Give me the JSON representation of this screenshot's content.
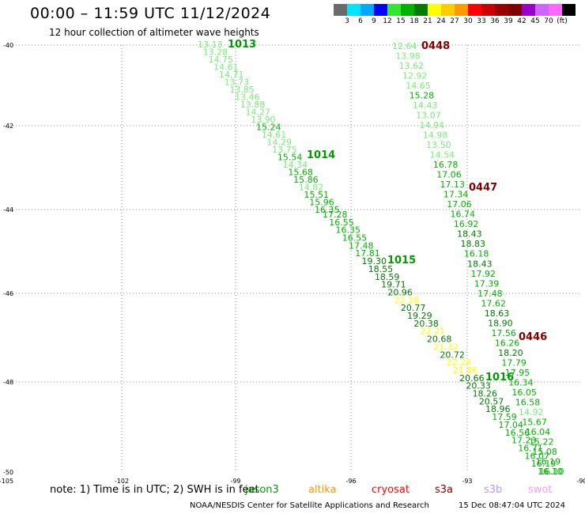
{
  "title": "00:00 – 11:59 UTC 11/12/2024",
  "subtitle": "12 hour collection of altimeter wave heights",
  "colorbar": {
    "colors": [
      "#6b6b6b",
      "#00e5ff",
      "#00a8ff",
      "#0000ff",
      "#33e633",
      "#00b300",
      "#007a00",
      "#ffff00",
      "#ffcc00",
      "#ff9900",
      "#ff0000",
      "#cc0000",
      "#990000",
      "#800000",
      "#9900cc",
      "#cc66ff",
      "#ff66ff",
      "#000000"
    ],
    "ticks": [
      "3",
      "6",
      "9",
      "12",
      "15",
      "18",
      "21",
      "24",
      "27",
      "30",
      "33",
      "36",
      "39",
      "42",
      "45",
      "70",
      "(ft)"
    ]
  },
  "axes": {
    "lat_labels": [
      "-40",
      "-42",
      "-44",
      "-46",
      "-48",
      "-50"
    ],
    "lon_labels": [
      "-105",
      "-102",
      "-99",
      "-96",
      "-93",
      "-90"
    ]
  },
  "passes": [
    {
      "id": "pass-a",
      "label": "1013",
      "label_color": "#009900",
      "values": [
        "13.13",
        "13.28",
        "14.75",
        "14.61",
        "14.71",
        "13.73",
        "13.85",
        "13.46",
        "13.88",
        "14.27",
        "13.90",
        "15.24",
        "14.61",
        "14.29",
        "13.75",
        "15.54",
        "14.34",
        "15.68",
        "15.86",
        "14.82",
        "15.51",
        "15.96",
        "16.35"
      ]
    },
    {
      "id": "pass-b",
      "label": "1014",
      "label_color": "#009900"
    },
    {
      "id": "pass-c",
      "label": "1015",
      "label_color": "#009900",
      "values": [
        "17.28",
        "16.55",
        "16.35",
        "16.55",
        "17.48",
        "17.81",
        "19.30",
        "18.55",
        "18.59",
        "19.71",
        "20.96",
        "22.28",
        "20.77",
        "19.29",
        "20.38",
        "22.21",
        "20.68",
        "21.32",
        "20.72",
        "22.24",
        "21.86",
        "20.66",
        "20.33",
        "18.26",
        "20.57",
        "18.96",
        "17.59",
        "17.04",
        "16.56",
        "17.23",
        "16.71",
        "16.07",
        "16.19",
        "16.10"
      ]
    },
    {
      "id": "pass-d",
      "label": "1016",
      "label_color": "#009900"
    },
    {
      "id": "pass-e",
      "label": "0448",
      "label_color": "#800000",
      "values": [
        "12.64",
        "13.98",
        "13.62",
        "12.92",
        "14.65",
        "15.28",
        "14.43",
        "13.07",
        "14.94",
        "14.98",
        "13.50",
        "14.54",
        "16.78",
        "17.06",
        "17.13",
        "17.34",
        "17.06",
        "16.74",
        "16.92",
        "18.43",
        "18.83",
        "16.18",
        "18.43",
        "17.92",
        "17.39",
        "17.48",
        "17.62",
        "18.63",
        "18.90",
        "17.56",
        "16.26",
        "18.20",
        "17.79",
        "17.95",
        "16.34",
        "16.05",
        "16.58",
        "14.92",
        "15.67",
        "16.04",
        "15.22",
        "15.08",
        "16.19",
        "16.10"
      ]
    },
    {
      "id": "pass-f",
      "label": "0447",
      "label_color": "#800000"
    },
    {
      "id": "pass-g",
      "label": "0446",
      "label_color": "#800000"
    }
  ],
  "footer": {
    "note": "note:  1) Time is in UTC; 2) SWH is in feet",
    "legend": [
      {
        "name": "jason3",
        "color": "#009900"
      },
      {
        "name": "altika",
        "color": "#ff9900"
      },
      {
        "name": "cryosat",
        "color": "#ff0000"
      },
      {
        "name": "s3a",
        "color": "#800000"
      },
      {
        "name": "s3b",
        "color": "#bb99ee"
      },
      {
        "name": "swot",
        "color": "#ff99ff"
      }
    ],
    "credit": "NOAA/NESDIS Center for Satellite Applications and Research",
    "timestamp": "15 Dec 08:47:04 UTC 2024"
  }
}
